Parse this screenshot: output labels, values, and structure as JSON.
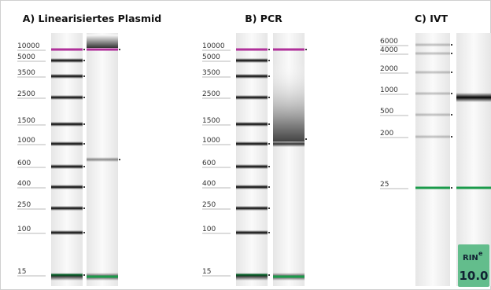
{
  "panels": [
    {
      "title": "A) Linearisiertes Plasmid",
      "ladder": [
        "10000",
        "5000",
        "3500",
        "2500",
        "1500",
        "1000",
        "600",
        "400",
        "250",
        "100",
        "15"
      ]
    },
    {
      "title": "B) PCR",
      "ladder": [
        "10000",
        "5000",
        "3500",
        "2500",
        "1500",
        "1000",
        "600",
        "400",
        "250",
        "100",
        "15"
      ]
    },
    {
      "title": "C) IVT",
      "ladder": [
        "6000",
        "4000",
        "2000",
        "1000",
        "500",
        "200",
        "25"
      ]
    }
  ],
  "rin": {
    "label": "RIN",
    "superscript": "e",
    "value": "10.0"
  }
}
